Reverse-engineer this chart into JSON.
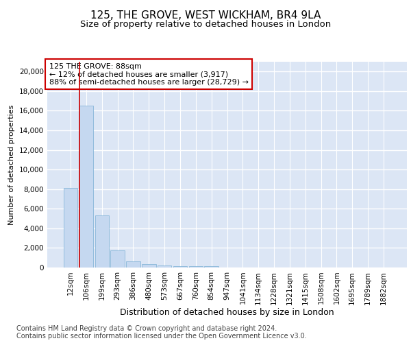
{
  "title1": "125, THE GROVE, WEST WICKHAM, BR4 9LA",
  "title2": "Size of property relative to detached houses in London",
  "xlabel": "Distribution of detached houses by size in London",
  "ylabel": "Number of detached properties",
  "categories": [
    "12sqm",
    "106sqm",
    "199sqm",
    "293sqm",
    "386sqm",
    "480sqm",
    "573sqm",
    "667sqm",
    "760sqm",
    "854sqm",
    "947sqm",
    "1041sqm",
    "1134sqm",
    "1228sqm",
    "1321sqm",
    "1415sqm",
    "1508sqm",
    "1602sqm",
    "1695sqm",
    "1789sqm",
    "1882sqm"
  ],
  "bar_heights": [
    8100,
    16500,
    5300,
    1750,
    650,
    330,
    200,
    170,
    150,
    150,
    0,
    0,
    0,
    0,
    0,
    0,
    0,
    0,
    0,
    0,
    0
  ],
  "bar_color": "#c5d8f0",
  "bar_edge_color": "#7aafd4",
  "background_color": "#dce6f5",
  "grid_color": "#ffffff",
  "annotation_text": "125 THE GROVE: 88sqm\n← 12% of detached houses are smaller (3,917)\n88% of semi-detached houses are larger (28,729) →",
  "annotation_box_color": "#ffffff",
  "annotation_border_color": "#cc0000",
  "vline_color": "#cc0000",
  "ylim": [
    0,
    21000
  ],
  "yticks": [
    0,
    2000,
    4000,
    6000,
    8000,
    10000,
    12000,
    14000,
    16000,
    18000,
    20000
  ],
  "footer1": "Contains HM Land Registry data © Crown copyright and database right 2024.",
  "footer2": "Contains public sector information licensed under the Open Government Licence v3.0.",
  "title1_fontsize": 11,
  "title2_fontsize": 9.5,
  "xlabel_fontsize": 9,
  "ylabel_fontsize": 8,
  "tick_fontsize": 7.5,
  "annotation_fontsize": 8,
  "footer_fontsize": 7
}
